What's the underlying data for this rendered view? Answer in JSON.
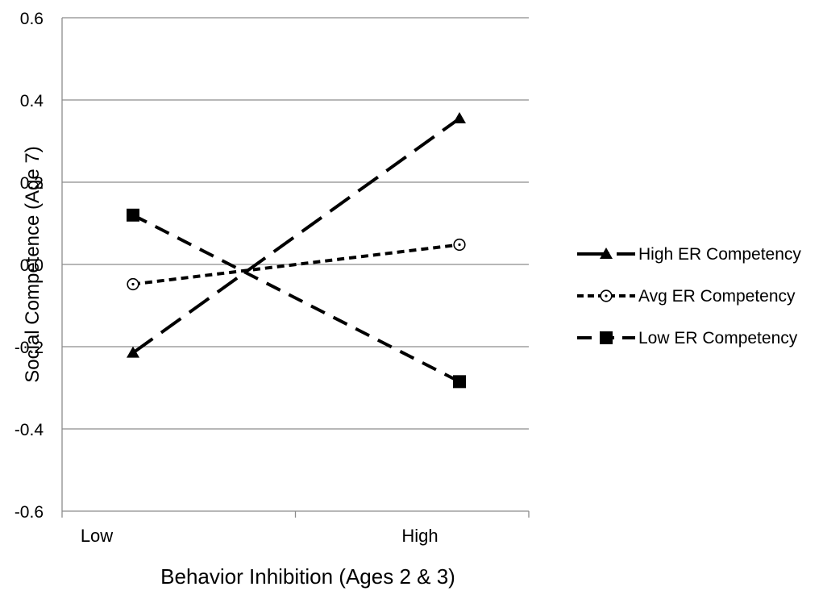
{
  "chart_data": {
    "type": "line",
    "title": "",
    "xlabel": "Behavior Inhibition (Ages 2 & 3)",
    "ylabel": "Social Competence (Age 7)",
    "categories": [
      "Low",
      "High"
    ],
    "ylim": [
      -0.6,
      0.6
    ],
    "yticks": [
      "-0.6",
      "-0.4",
      "-0.2",
      "0.0",
      "0.2",
      "0.4",
      "0.6"
    ],
    "grid": true,
    "legend_position": "right",
    "series": [
      {
        "name": "High ER Competency",
        "values": [
          -0.215,
          0.355
        ],
        "marker": "triangle",
        "dash": "long-dash",
        "color": "#000000"
      },
      {
        "name": "Avg ER Competency",
        "values": [
          -0.048,
          0.048
        ],
        "marker": "open-circle",
        "dash": "short-dash",
        "color": "#000000"
      },
      {
        "name": "Low ER Competency",
        "values": [
          0.12,
          -0.285
        ],
        "marker": "square",
        "dash": "medium-dash",
        "color": "#000000"
      }
    ]
  }
}
